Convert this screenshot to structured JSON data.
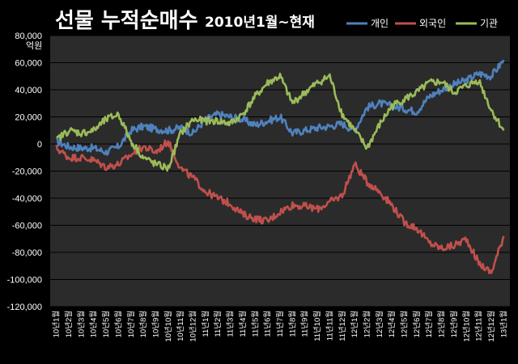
{
  "title": "선물 누적순매수",
  "subtitle": "2010년1월~현재",
  "colors": {
    "background": "#000000",
    "plot_area": "#2b2b2b",
    "gridline": "#000000",
    "개인": "#4f81bd",
    "외국인": "#c0504d",
    "기관": "#9bbb59"
  },
  "chart_data": {
    "type": "line",
    "title": "선물 누적순매수",
    "subtitle": "2010년1월~현재",
    "ylabel": "억원",
    "xlabel": "",
    "ylim": [
      -120000,
      80000
    ],
    "ytick_step": 20000,
    "ytick_labels": [
      "80,000",
      "60,000",
      "40,000",
      "20,000",
      "0",
      "-20,000",
      "-40,000",
      "-60,000",
      "-80,000",
      "-100,000",
      "-120,000"
    ],
    "grid": true,
    "legend_position": "top-right",
    "x": [
      "10년1월",
      "10년2월",
      "10년3월",
      "10년4월",
      "10년5월",
      "10년6월",
      "10년7월",
      "10년8월",
      "10년9월",
      "10년10월",
      "10년11월",
      "10년12월",
      "11년1월",
      "11년2월",
      "11년3월",
      "11년4월",
      "11년5월",
      "11년6월",
      "11년7월",
      "11년8월",
      "11년9월",
      "11년10월",
      "11년11월",
      "11년12월",
      "12년1월",
      "12년2월",
      "12년3월",
      "12년4월",
      "12년5월",
      "12년6월",
      "12년7월",
      "12년8월",
      "12년9월",
      "12년10월",
      "12년11월",
      "12년12월",
      "13년1월"
    ],
    "series": [
      {
        "name": "개인",
        "values": [
          2000,
          -2000,
          -3000,
          -3000,
          -6000,
          -2000,
          10000,
          13000,
          11000,
          10000,
          12000,
          8000,
          18000,
          22000,
          20000,
          18000,
          14000,
          17000,
          20000,
          8000,
          10000,
          12000,
          13000,
          15000,
          10000,
          27000,
          30000,
          28000,
          26000,
          24000,
          35000,
          40000,
          44000,
          47000,
          52000,
          50000,
          62000
        ]
      },
      {
        "name": "외국인",
        "values": [
          -3000,
          -10000,
          -10000,
          -12000,
          -17000,
          -15000,
          -8000,
          -2000,
          -6000,
          2000,
          -18000,
          -25000,
          -35000,
          -40000,
          -44000,
          -52000,
          -55000,
          -57000,
          -50000,
          -45000,
          -46000,
          -48000,
          -43000,
          -38000,
          -15000,
          -28000,
          -35000,
          -45000,
          -58000,
          -62000,
          -73000,
          -77000,
          -75000,
          -70000,
          -88000,
          -95000,
          -68000
        ]
      },
      {
        "name": "기관",
        "values": [
          3000,
          10000,
          8000,
          10000,
          18000,
          22000,
          2000,
          -10000,
          -15000,
          -18000,
          8000,
          18000,
          17000,
          17000,
          15000,
          22000,
          35000,
          45000,
          50000,
          30000,
          38000,
          45000,
          50000,
          22000,
          10000,
          -3000,
          14000,
          28000,
          33000,
          38000,
          45000,
          46000,
          38000,
          43000,
          47000,
          25000,
          10000
        ]
      }
    ]
  }
}
